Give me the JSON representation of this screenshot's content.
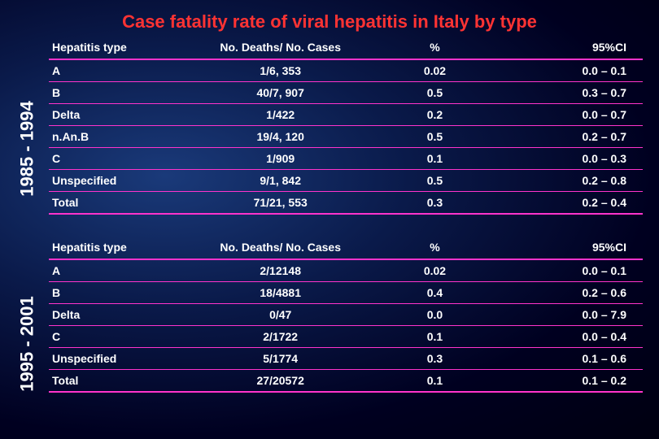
{
  "title": "Case fatality rate of viral hepatitis in Italy by type",
  "background": {
    "gradient_center": "#1a3a7a",
    "gradient_mid": "#0a1a4a",
    "gradient_edge": "#000010"
  },
  "colors": {
    "title": "#ff3333",
    "text": "#ffffff",
    "rule": "#ff33cc"
  },
  "typography": {
    "title_fontsize": 22,
    "period_fontsize": 22,
    "cell_fontsize": 14,
    "font_family": "Arial",
    "font_weight": "bold"
  },
  "periods": [
    {
      "label": "1985 - 1994"
    },
    {
      "label": "1995 - 2001"
    }
  ],
  "headers": {
    "type": "Hepatitis type",
    "deaths_cases": "No. Deaths/ No. Cases",
    "pct": "%",
    "ci": "95%CI"
  },
  "tables": [
    {
      "rows": [
        {
          "type": "A",
          "deaths_cases": "1/6, 353",
          "pct": "0.02",
          "ci": "0.0 – 0.1"
        },
        {
          "type": "B",
          "deaths_cases": "40/7, 907",
          "pct": "0.5",
          "ci": "0.3 – 0.7"
        },
        {
          "type": "Delta",
          "deaths_cases": "1/422",
          "pct": "0.2",
          "ci": "0.0 – 0.7"
        },
        {
          "type": "n.An.B",
          "deaths_cases": "19/4, 120",
          "pct": "0.5",
          "ci": "0.2 – 0.7"
        },
        {
          "type": "C",
          "deaths_cases": "1/909",
          "pct": "0.1",
          "ci": "0.0 – 0.3"
        },
        {
          "type": "Unspecified",
          "deaths_cases": "9/1, 842",
          "pct": "0.5",
          "ci": "0.2 – 0.8"
        }
      ],
      "total": {
        "type": "Total",
        "deaths_cases": "71/21, 553",
        "pct": "0.3",
        "ci": "0.2 – 0.4"
      }
    },
    {
      "rows": [
        {
          "type": "A",
          "deaths_cases": "2/12148",
          "pct": "0.02",
          "ci": "0.0 – 0.1"
        },
        {
          "type": "B",
          "deaths_cases": "18/4881",
          "pct": "0.4",
          "ci": "0.2 – 0.6"
        },
        {
          "type": "Delta",
          "deaths_cases": "0/47",
          "pct": "0.0",
          "ci": "0.0 – 7.9"
        },
        {
          "type": "C",
          "deaths_cases": "2/1722",
          "pct": "0.1",
          "ci": "0.0 – 0.4"
        },
        {
          "type": "Unspecified",
          "deaths_cases": "5/1774",
          "pct": "0.3",
          "ci": "0.1 – 0.6"
        }
      ],
      "total": {
        "type": "Total",
        "deaths_cases": "27/20572",
        "pct": "0.1",
        "ci": "0.1 – 0.2"
      }
    }
  ]
}
